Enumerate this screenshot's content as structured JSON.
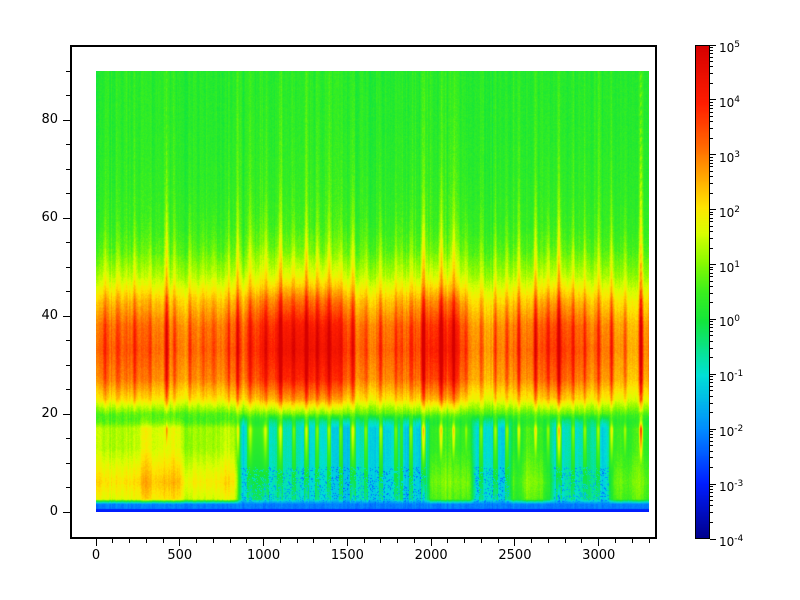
{
  "chart_data": {
    "type": "heatmap",
    "title": "",
    "xlabel": "",
    "ylabel": "",
    "grid": false,
    "legend": "none",
    "x_axis": {
      "data_min": 0,
      "data_max": 3300,
      "major_ticks": [
        0,
        500,
        1000,
        1500,
        2000,
        2500,
        3000
      ],
      "tick_labels": [
        "0",
        "500",
        "1000",
        "1500",
        "2000",
        "2500",
        "3000"
      ],
      "minor_step": 100
    },
    "y_axis": {
      "data_min": 0,
      "data_max": 90,
      "major_ticks": [
        0,
        20,
        40,
        60,
        80
      ],
      "tick_labels": [
        "0",
        "20",
        "40",
        "60",
        "80"
      ],
      "minor_step": 5
    },
    "colorbar": {
      "scale": "log",
      "base_label": "10",
      "tick_exponents": [
        5,
        4,
        3,
        2,
        1,
        0,
        -1,
        -2,
        -3,
        -4
      ],
      "min_value_log10": -4,
      "max_value_log10": 5,
      "colormap": "jet",
      "colormap_stops": [
        [
          0.0,
          "#00008C"
        ],
        [
          0.11,
          "#001EFF"
        ],
        [
          0.22,
          "#008CFF"
        ],
        [
          0.33,
          "#00E1D7"
        ],
        [
          0.44,
          "#14E63C"
        ],
        [
          0.5,
          "#3CF01E"
        ],
        [
          0.56,
          "#8CFA00"
        ],
        [
          0.62,
          "#DCFF00"
        ],
        [
          0.67,
          "#FFE600"
        ],
        [
          0.73,
          "#FFAA00"
        ],
        [
          0.8,
          "#FF6400"
        ],
        [
          0.88,
          "#FF1E00"
        ],
        [
          1.0,
          "#D70000"
        ]
      ]
    },
    "field": {
      "description": "Spectrogram-like log-scale intensity field: strong red/orange band (10^3..10^5) between y=22 and y=48 with vertical streaks; green background (10^0) above up to y=90; cyan low band (10^-1) between y=2 and y=18 with yellow-green patches near x=0-880, 1950-2280, 2440-2760, 3040-3300; blue speckles (10^-2) near bottom of cyan band; thin blue strip (10^-2..10^-3) at y=0; tall streaks reaching full height near x=420, 1955, 2765, 3255.",
      "seed": 20,
      "log10_range": [
        -4,
        5
      ],
      "row_profile": [
        [
          0,
          -2.7
        ],
        [
          0.7,
          -2.2
        ],
        [
          1.5,
          -1.4
        ],
        [
          4,
          -1.05
        ],
        [
          10,
          -1.0
        ],
        [
          15,
          -0.75
        ],
        [
          18,
          -0.2
        ],
        [
          20,
          0.9
        ],
        [
          23,
          2.6
        ],
        [
          27,
          3.7
        ],
        [
          33,
          4.15
        ],
        [
          38,
          3.9
        ],
        [
          43,
          3.0
        ],
        [
          48,
          1.7
        ],
        [
          53,
          0.9
        ],
        [
          58,
          0.55
        ],
        [
          66,
          0.4
        ],
        [
          78,
          0.3
        ],
        [
          90,
          0.28
        ]
      ],
      "low_band_regions": [
        [
          0,
          880,
          1.5
        ],
        [
          880,
          1950,
          0.05
        ],
        [
          1950,
          2280,
          1.0
        ],
        [
          2280,
          2440,
          0.25
        ],
        [
          2440,
          2760,
          0.85
        ],
        [
          2760,
          3040,
          0.2
        ],
        [
          3040,
          3300,
          0.8
        ]
      ],
      "streaks": [
        [
          50,
          0.4
        ],
        [
          130,
          0.3
        ],
        [
          230,
          0.45
        ],
        [
          320,
          0.35
        ],
        [
          420,
          1.25
        ],
        [
          470,
          0.5
        ],
        [
          560,
          0.55
        ],
        [
          640,
          0.35
        ],
        [
          700,
          0.4
        ],
        [
          790,
          0.5
        ],
        [
          845,
          0.85
        ],
        [
          920,
          0.4
        ],
        [
          1010,
          0.45
        ],
        [
          1100,
          0.55
        ],
        [
          1180,
          0.4
        ],
        [
          1255,
          0.7
        ],
        [
          1320,
          0.45
        ],
        [
          1390,
          0.55
        ],
        [
          1460,
          0.4
        ],
        [
          1530,
          0.5
        ],
        [
          1610,
          0.45
        ],
        [
          1700,
          0.6
        ],
        [
          1790,
          0.4
        ],
        [
          1880,
          0.5
        ],
        [
          1955,
          1.05
        ],
        [
          2060,
          0.8
        ],
        [
          2135,
          0.95
        ],
        [
          2210,
          0.5
        ],
        [
          2300,
          0.45
        ],
        [
          2385,
          0.55
        ],
        [
          2455,
          0.5
        ],
        [
          2525,
          0.75
        ],
        [
          2625,
          0.9
        ],
        [
          2700,
          0.5
        ],
        [
          2765,
          1.1
        ],
        [
          2850,
          0.45
        ],
        [
          2920,
          0.5
        ],
        [
          3000,
          0.55
        ],
        [
          3080,
          0.8
        ],
        [
          3160,
          0.55
        ],
        [
          3255,
          1.6
        ]
      ]
    }
  }
}
